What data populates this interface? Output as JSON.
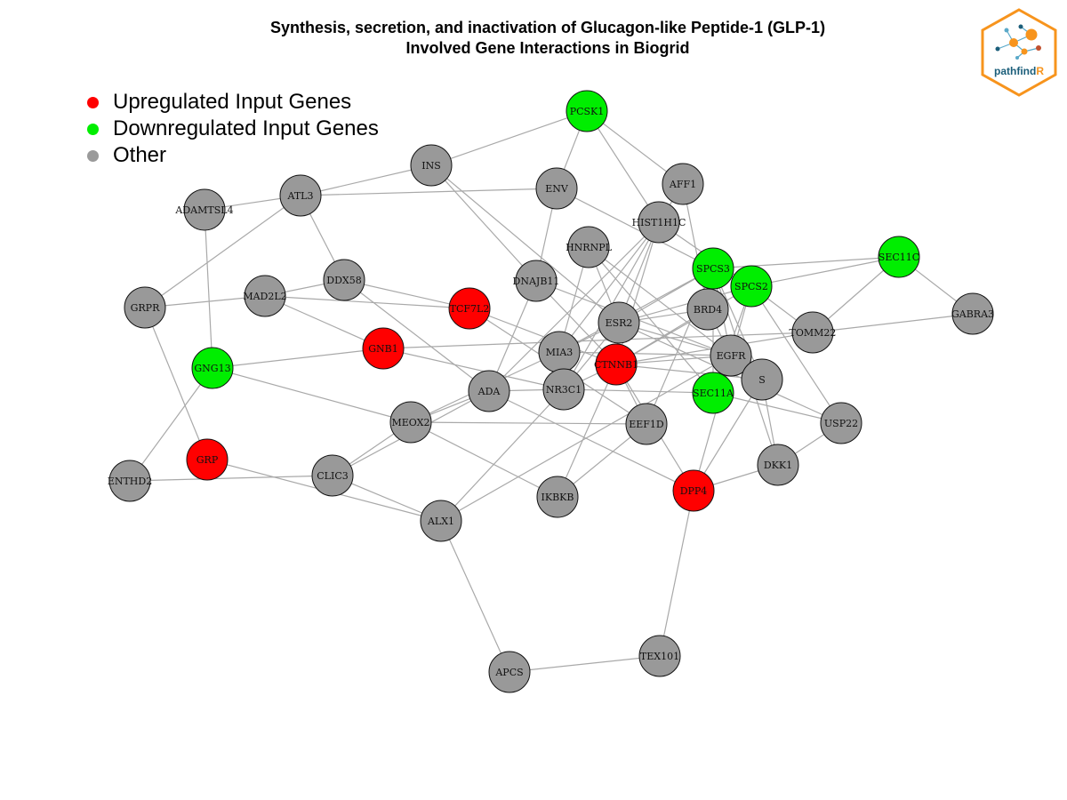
{
  "title": {
    "line1": "Synthesis, secretion, and inactivation of Glucagon-like Peptide-1 (GLP-1)",
    "line2": "Involved Gene Interactions in Biogrid"
  },
  "legend": [
    {
      "label": "Upregulated Input Genes",
      "color": "#ff0000"
    },
    {
      "label": "Downregulated Input Genes",
      "color": "#00ee00"
    },
    {
      "label": "Other",
      "color": "#9a9a9a"
    }
  ],
  "logo": {
    "text_main": "pathfind",
    "text_accent": "R",
    "border_color": "#f7941d",
    "accent_color": "#f7941d",
    "text_color": "#1b5e7a"
  },
  "colors": {
    "up": "#ff0000",
    "down": "#00ee00",
    "other": "#999999",
    "edge": "#a9a9a9",
    "stroke": "#111111"
  },
  "network": {
    "nodes": [
      {
        "id": "PCSK1",
        "status": "down"
      },
      {
        "id": "INS",
        "status": "other"
      },
      {
        "id": "ENV",
        "status": "other"
      },
      {
        "id": "AFF1",
        "status": "other"
      },
      {
        "id": "ATL3",
        "status": "other"
      },
      {
        "id": "ADAMTSL4",
        "status": "other"
      },
      {
        "id": "HIST1H1C",
        "status": "other"
      },
      {
        "id": "HNRNPL",
        "status": "other"
      },
      {
        "id": "SEC11C",
        "status": "down"
      },
      {
        "id": "SPCS3",
        "status": "down"
      },
      {
        "id": "SPCS2",
        "status": "down"
      },
      {
        "id": "DDX58",
        "status": "other"
      },
      {
        "id": "DNAJB11",
        "status": "other"
      },
      {
        "id": "GRPR",
        "status": "other"
      },
      {
        "id": "MAD2L2",
        "status": "other"
      },
      {
        "id": "TCF7L2",
        "status": "up"
      },
      {
        "id": "BRD4",
        "status": "other"
      },
      {
        "id": "ESR2",
        "status": "other"
      },
      {
        "id": "GABRA3",
        "status": "other"
      },
      {
        "id": "TOMM22",
        "status": "other"
      },
      {
        "id": "GNB1",
        "status": "up"
      },
      {
        "id": "MIA3",
        "status": "other"
      },
      {
        "id": "EGFR",
        "status": "other"
      },
      {
        "id": "GNG13",
        "status": "down"
      },
      {
        "id": "CTNNB1",
        "status": "up"
      },
      {
        "id": "S",
        "status": "other"
      },
      {
        "id": "ADA",
        "status": "other"
      },
      {
        "id": "NR3C1",
        "status": "other"
      },
      {
        "id": "SEC11A",
        "status": "down"
      },
      {
        "id": "MEOX2",
        "status": "other"
      },
      {
        "id": "EEF1D",
        "status": "other"
      },
      {
        "id": "USP22",
        "status": "other"
      },
      {
        "id": "GRP",
        "status": "up"
      },
      {
        "id": "DKK1",
        "status": "other"
      },
      {
        "id": "ENTHD2",
        "status": "other"
      },
      {
        "id": "CLIC3",
        "status": "other"
      },
      {
        "id": "DPP4",
        "status": "up"
      },
      {
        "id": "IKBKB",
        "status": "other"
      },
      {
        "id": "ALX1",
        "status": "other"
      },
      {
        "id": "TEX101",
        "status": "other"
      },
      {
        "id": "APCS",
        "status": "other"
      }
    ],
    "edges": [
      [
        "PCSK1",
        "INS"
      ],
      [
        "PCSK1",
        "AFF1"
      ],
      [
        "PCSK1",
        "ENV"
      ],
      [
        "PCSK1",
        "HIST1H1C"
      ],
      [
        "INS",
        "ATL3"
      ],
      [
        "INS",
        "DNAJB11"
      ],
      [
        "INS",
        "ESR2"
      ],
      [
        "ATL3",
        "ENV"
      ],
      [
        "ATL3",
        "ADAMTSL4"
      ],
      [
        "ATL3",
        "GRPR"
      ],
      [
        "ATL3",
        "DDX58"
      ],
      [
        "ADAMTSL4",
        "GNG13"
      ],
      [
        "ENV",
        "DNAJB11"
      ],
      [
        "ENV",
        "SPCS3"
      ],
      [
        "AFF1",
        "HIST1H1C"
      ],
      [
        "AFF1",
        "BRD4"
      ],
      [
        "HIST1H1C",
        "ESR2"
      ],
      [
        "HIST1H1C",
        "MIA3"
      ],
      [
        "HIST1H1C",
        "NR3C1"
      ],
      [
        "HIST1H1C",
        "CTNNB1"
      ],
      [
        "HIST1H1C",
        "ADA"
      ],
      [
        "HIST1H1C",
        "SPCS2"
      ],
      [
        "HNRNPL",
        "MIA3"
      ],
      [
        "HNRNPL",
        "ESR2"
      ],
      [
        "HNRNPL",
        "EGFR"
      ],
      [
        "HNRNPL",
        "SEC11A"
      ],
      [
        "SEC11C",
        "SPCS3"
      ],
      [
        "SEC11C",
        "SPCS2"
      ],
      [
        "SEC11C",
        "GABRA3"
      ],
      [
        "SEC11C",
        "TOMM22"
      ],
      [
        "SPCS3",
        "ESR2"
      ],
      [
        "SPCS3",
        "MIA3"
      ],
      [
        "SPCS3",
        "EGFR"
      ],
      [
        "SPCS3",
        "S"
      ],
      [
        "SPCS3",
        "SEC11A"
      ],
      [
        "SPCS3",
        "EEF1D"
      ],
      [
        "SPCS3",
        "DKK1"
      ],
      [
        "SPCS2",
        "ESR2"
      ],
      [
        "SPCS2",
        "TOMM22"
      ],
      [
        "SPCS2",
        "CTNNB1"
      ],
      [
        "SPCS2",
        "SEC11A"
      ],
      [
        "SPCS2",
        "DPP4"
      ],
      [
        "SPCS2",
        "USP22"
      ],
      [
        "DDX58",
        "MAD2L2"
      ],
      [
        "DDX58",
        "TCF7L2"
      ],
      [
        "DDX58",
        "ADA"
      ],
      [
        "DNAJB11",
        "ADA"
      ],
      [
        "DNAJB11",
        "EGFR"
      ],
      [
        "DNAJB11",
        "CTNNB1"
      ],
      [
        "GRPR",
        "MAD2L2"
      ],
      [
        "GRPR",
        "GRP"
      ],
      [
        "MAD2L2",
        "TCF7L2"
      ],
      [
        "MAD2L2",
        "GNB1"
      ],
      [
        "TCF7L2",
        "CTNNB1"
      ],
      [
        "BRD4",
        "ESR2"
      ],
      [
        "BRD4",
        "EGFR"
      ],
      [
        "BRD4",
        "CTNNB1"
      ],
      [
        "ESR2",
        "MIA3"
      ],
      [
        "ESR2",
        "CTNNB1"
      ],
      [
        "ESR2",
        "EGFR"
      ],
      [
        "ESR2",
        "USP22"
      ],
      [
        "ESR2",
        "NR3C1"
      ],
      [
        "GABRA3",
        "TOMM22"
      ],
      [
        "TOMM22",
        "GNB1"
      ],
      [
        "TOMM22",
        "CTNNB1"
      ],
      [
        "GNB1",
        "GNG13"
      ],
      [
        "GNB1",
        "NR3C1"
      ],
      [
        "MIA3",
        "MEOX2"
      ],
      [
        "MIA3",
        "EGFR"
      ],
      [
        "EGFR",
        "S"
      ],
      [
        "EGFR",
        "CTNNB1"
      ],
      [
        "EGFR",
        "ALX1"
      ],
      [
        "GNG13",
        "MEOX2"
      ],
      [
        "GNG13",
        "ENTHD2"
      ],
      [
        "CTNNB1",
        "S"
      ],
      [
        "CTNNB1",
        "NR3C1"
      ],
      [
        "CTNNB1",
        "IKBKB"
      ],
      [
        "CTNNB1",
        "EEF1D"
      ],
      [
        "CTNNB1",
        "DPP4"
      ],
      [
        "S",
        "DKK1"
      ],
      [
        "S",
        "DPP4"
      ],
      [
        "ADA",
        "NR3C1"
      ],
      [
        "ADA",
        "MEOX2"
      ],
      [
        "ADA",
        "DPP4"
      ],
      [
        "ADA",
        "CLIC3"
      ],
      [
        "NR3C1",
        "SEC11A"
      ],
      [
        "NR3C1",
        "ALX1"
      ],
      [
        "MEOX2",
        "IKBKB"
      ],
      [
        "MEOX2",
        "CLIC3"
      ],
      [
        "EEF1D",
        "IKBKB"
      ],
      [
        "EEF1D",
        "MEOX2"
      ],
      [
        "EEF1D",
        "TCF7L2"
      ],
      [
        "USP22",
        "DKK1"
      ],
      [
        "USP22",
        "SEC11A"
      ],
      [
        "GRP",
        "ALX1"
      ],
      [
        "DKK1",
        "DPP4"
      ],
      [
        "ENTHD2",
        "CLIC3"
      ],
      [
        "CLIC3",
        "ALX1"
      ],
      [
        "DPP4",
        "TEX101"
      ],
      [
        "ALX1",
        "APCS"
      ],
      [
        "TEX101",
        "APCS"
      ]
    ]
  }
}
